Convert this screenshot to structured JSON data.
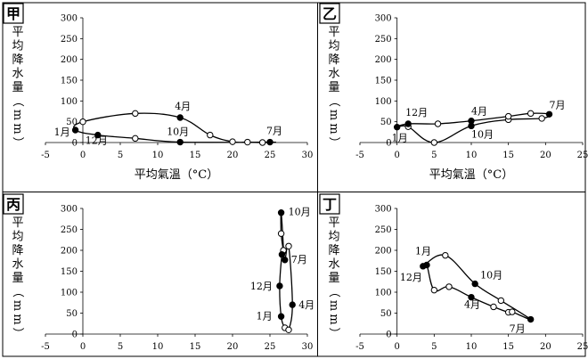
{
  "chart_data": [
    {
      "id": "jia",
      "panel_label": "甲",
      "type": "scatter",
      "xlim": [
        -5,
        30
      ],
      "ylim": [
        0,
        300
      ],
      "xticks": [
        -5,
        0,
        5,
        10,
        15,
        20,
        25,
        30
      ],
      "yticks": [
        0,
        50,
        100,
        150,
        200,
        250,
        300
      ],
      "ylabel": "平均降水量（mm）",
      "xlabel": "平均氣溫（°C）",
      "points": [
        {
          "x": -1.0,
          "y": 30,
          "filled": true
        },
        {
          "x": 0.0,
          "y": 50,
          "filled": false
        },
        {
          "x": 7.0,
          "y": 70,
          "filled": false
        },
        {
          "x": 13.0,
          "y": 60,
          "filled": true
        },
        {
          "x": 17.0,
          "y": 18,
          "filled": false
        },
        {
          "x": 20.0,
          "y": 2,
          "filled": false
        },
        {
          "x": 22.0,
          "y": 1,
          "filled": false
        },
        {
          "x": 24.0,
          "y": 0,
          "filled": false
        },
        {
          "x": 25.0,
          "y": 1,
          "filled": true
        },
        {
          "x": 13.0,
          "y": 1,
          "filled": true
        },
        {
          "x": 7.0,
          "y": 10,
          "filled": false
        },
        {
          "x": 2.0,
          "y": 18,
          "filled": true
        }
      ],
      "month_labels": [
        {
          "text": "1月",
          "x": -1.0,
          "y": 30,
          "dx": -24,
          "dy": 6
        },
        {
          "text": "4月",
          "x": 13.0,
          "y": 60,
          "dx": -6,
          "dy": -9
        },
        {
          "text": "7月",
          "x": 25.0,
          "y": 1,
          "dx": -4,
          "dy": -9
        },
        {
          "text": "10月",
          "x": 13.0,
          "y": 1,
          "dx": -15,
          "dy": -8
        },
        {
          "text": "12月",
          "x": 2.0,
          "y": 18,
          "dx": -14,
          "dy": 10
        }
      ]
    },
    {
      "id": "yi",
      "panel_label": "乙",
      "type": "scatter",
      "xlim": [
        -5,
        25
      ],
      "ylim": [
        0,
        300
      ],
      "xticks": [
        -5,
        0,
        5,
        10,
        15,
        20,
        25
      ],
      "yticks": [
        0,
        50,
        100,
        150,
        200,
        250,
        300
      ],
      "ylabel": "平均降水量（mm）",
      "xlabel": "平均氣溫（°C）",
      "points": [
        {
          "x": 0.0,
          "y": 37,
          "filled": true
        },
        {
          "x": 1.5,
          "y": 38,
          "filled": false
        },
        {
          "x": 5.0,
          "y": 0,
          "filled": false
        },
        {
          "x": 10.0,
          "y": 40,
          "filled": true
        },
        {
          "x": 15.0,
          "y": 55,
          "filled": false
        },
        {
          "x": 19.5,
          "y": 58,
          "filled": false
        },
        {
          "x": 20.5,
          "y": 68,
          "filled": true
        },
        {
          "x": 18.0,
          "y": 70,
          "filled": false
        },
        {
          "x": 15.0,
          "y": 63,
          "filled": false
        },
        {
          "x": 10.0,
          "y": 52,
          "filled": true
        },
        {
          "x": 5.5,
          "y": 45,
          "filled": false
        },
        {
          "x": 1.5,
          "y": 45,
          "filled": true
        }
      ],
      "month_labels": [
        {
          "text": "1月",
          "x": 0.0,
          "y": 37,
          "dx": -6,
          "dy": 16
        },
        {
          "text": "4月",
          "x": 10.0,
          "y": 52,
          "dx": 0,
          "dy": -7
        },
        {
          "text": "7月",
          "x": 20.5,
          "y": 68,
          "dx": 0,
          "dy": -7
        },
        {
          "text": "10月",
          "x": 10.0,
          "y": 40,
          "dx": 0,
          "dy": 13
        },
        {
          "text": "12月",
          "x": 1.5,
          "y": 45,
          "dx": -3,
          "dy": -9
        }
      ]
    },
    {
      "id": "bing",
      "panel_label": "丙",
      "type": "scatter",
      "xlim": [
        -5,
        30
      ],
      "ylim": [
        0,
        300
      ],
      "xticks": [
        -5,
        0,
        5,
        10,
        15,
        20,
        25,
        30
      ],
      "yticks": [
        0,
        50,
        100,
        150,
        200,
        250,
        300
      ],
      "ylabel": "平均降水量（mm）",
      "xlabel": "",
      "points": [
        {
          "x": 26.5,
          "y": 42,
          "filled": true
        },
        {
          "x": 27.0,
          "y": 15,
          "filled": false
        },
        {
          "x": 27.5,
          "y": 10,
          "filled": false
        },
        {
          "x": 28.0,
          "y": 70,
          "filled": true
        },
        {
          "x": 27.5,
          "y": 210,
          "filled": false
        },
        {
          "x": 27.0,
          "y": 177,
          "filled": true
        },
        {
          "x": 26.8,
          "y": 198,
          "filled": true
        },
        {
          "x": 26.5,
          "y": 240,
          "filled": false
        },
        {
          "x": 26.5,
          "y": 290,
          "filled": true
        },
        {
          "x": 26.8,
          "y": 200,
          "filled": false
        },
        {
          "x": 26.6,
          "y": 190,
          "filled": true
        },
        {
          "x": 26.3,
          "y": 115,
          "filled": true
        }
      ],
      "month_labels": [
        {
          "text": "1月",
          "x": 26.5,
          "y": 42,
          "dx": -28,
          "dy": 3
        },
        {
          "text": "4月",
          "x": 28.0,
          "y": 70,
          "dx": 7,
          "dy": 4
        },
        {
          "text": "7月",
          "x": 27.0,
          "y": 177,
          "dx": 7,
          "dy": 3
        },
        {
          "text": "10月",
          "x": 26.5,
          "y": 290,
          "dx": 8,
          "dy": 3
        },
        {
          "text": "12月",
          "x": 26.3,
          "y": 115,
          "dx": -33,
          "dy": 4
        }
      ]
    },
    {
      "id": "ding",
      "panel_label": "丁",
      "type": "scatter",
      "xlim": [
        -5,
        25
      ],
      "ylim": [
        0,
        300
      ],
      "xticks": [
        -5,
        0,
        5,
        10,
        15,
        20,
        25
      ],
      "yticks": [
        0,
        50,
        100,
        150,
        200,
        250,
        300
      ],
      "ylabel": "平均降水量（mm）",
      "xlabel": "",
      "points": [
        {
          "x": 4.0,
          "y": 165,
          "filled": true
        },
        {
          "x": 5.0,
          "y": 105,
          "filled": false
        },
        {
          "x": 7.0,
          "y": 113,
          "filled": false
        },
        {
          "x": 10.0,
          "y": 88,
          "filled": true
        },
        {
          "x": 13.0,
          "y": 65,
          "filled": false
        },
        {
          "x": 15.0,
          "y": 52,
          "filled": false
        },
        {
          "x": 15.5,
          "y": 53,
          "filled": false
        },
        {
          "x": 18.0,
          "y": 35,
          "filled": true
        },
        {
          "x": 14.0,
          "y": 80,
          "filled": false
        },
        {
          "x": 10.5,
          "y": 120,
          "filled": true
        },
        {
          "x": 6.5,
          "y": 188,
          "filled": false
        },
        {
          "x": 3.5,
          "y": 162,
          "filled": true
        }
      ],
      "month_labels": [
        {
          "text": "1月",
          "x": 4.0,
          "y": 165,
          "dx": -13,
          "dy": -12
        },
        {
          "text": "4月",
          "x": 10.0,
          "y": 88,
          "dx": -8,
          "dy": 12
        },
        {
          "text": "7月",
          "x": 18.0,
          "y": 35,
          "dx": -24,
          "dy": 14
        },
        {
          "text": "10月",
          "x": 10.5,
          "y": 120,
          "dx": 6,
          "dy": -6
        },
        {
          "text": "12月",
          "x": 3.5,
          "y": 162,
          "dx": -26,
          "dy": 16
        }
      ]
    }
  ]
}
